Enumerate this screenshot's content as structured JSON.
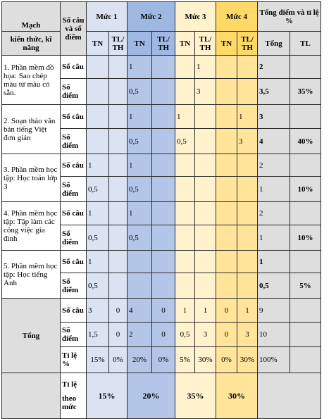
{
  "header": {
    "mach_line1": "Mạch",
    "mach_line2": "kiến thức, kĩ năng",
    "so_cau_so_diem": "Số câu và số điểm",
    "muc1": "Mức 1",
    "muc2": "Mức 2",
    "muc3": "Mức 3",
    "muc4": "Mức 4",
    "tong_diem": "Tổng điểm và tỉ lệ %",
    "tn": "TN",
    "tlth": "TL/ TH",
    "tong": "Tổng",
    "tl": "TL"
  },
  "labels": {
    "so_cau": "Số câu",
    "so_diem": "Số điểm",
    "ti_le": "Tỉ lệ %",
    "ti_le_2": "Tỉ lệ",
    "theo_muc": "theo mức"
  },
  "rows": [
    {
      "topic": "1. Phần mềm đồ họa: Sao chép màu từ màu có sẵn.",
      "cau": [
        "",
        "",
        "1",
        "",
        "",
        "1",
        "",
        "",
        "2",
        ""
      ],
      "diem": [
        "",
        "",
        "0,5",
        "",
        "",
        "3",
        "",
        "",
        "3,5",
        "35%"
      ]
    },
    {
      "topic": "2. Soạn thảo văn bản tiếng Việt đơn giản",
      "cau": [
        "",
        "",
        "1",
        "",
        "1",
        "",
        "",
        "1",
        "3",
        ""
      ],
      "diem": [
        "",
        "",
        "0,5",
        "",
        "0,5",
        "",
        "",
        "3",
        "4",
        "40%"
      ]
    },
    {
      "topic": "3. Phần mềm học tập: Học toán lớp 3",
      "cau": [
        "1",
        "",
        "1",
        "",
        "",
        "",
        "",
        "",
        "2",
        ""
      ],
      "diem": [
        "0,5",
        "",
        "0,5",
        "",
        "",
        "",
        "",
        "",
        "1",
        "10%"
      ]
    },
    {
      "topic": "4. Phần mềm học tập: Tập làm các công việc gia đình",
      "cau": [
        "1",
        "",
        "1",
        "",
        "",
        "",
        "",
        "",
        "2",
        ""
      ],
      "diem": [
        "0,5",
        "",
        "0,5",
        "",
        "",
        "",
        "",
        "",
        "1",
        "10%"
      ]
    },
    {
      "topic": "5. Phần mềm học tập: Học tiếng Anh",
      "cau": [
        "1",
        "",
        "",
        "",
        "",
        "",
        "",
        "",
        "1",
        ""
      ],
      "diem": [
        "0,5",
        "",
        "",
        "",
        "",
        "",
        "",
        "",
        "0,5",
        "5%"
      ]
    }
  ],
  "tong": {
    "label": "Tổng",
    "cau": [
      "3",
      "0",
      "4",
      "0",
      "1",
      "1",
      "0",
      "1",
      "9",
      ""
    ],
    "diem": [
      "1,5",
      "0",
      "2",
      "0",
      "0,5",
      "3",
      "0",
      "3",
      "10",
      ""
    ],
    "tile": [
      "15%",
      "0%",
      "20%",
      "0%",
      "5%",
      "30%",
      "0%",
      "30%",
      "100%",
      ""
    ]
  },
  "theo_muc": [
    "15%",
    "20%",
    "35%",
    "30%"
  ]
}
